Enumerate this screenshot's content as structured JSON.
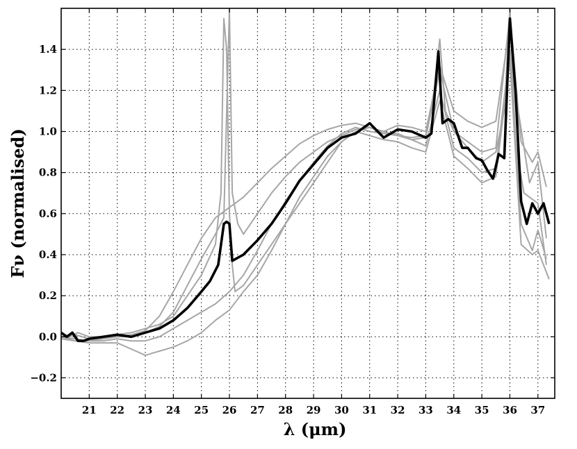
{
  "chart_data": {
    "type": "line",
    "title": "",
    "xlabel": "λ (μm)",
    "ylabel": "Fν (normalised)",
    "xlim": [
      20.0,
      37.6
    ],
    "ylim": [
      -0.3,
      1.6
    ],
    "grid": true,
    "grid_style": "dotted",
    "x_ticks": [
      21,
      22,
      23,
      24,
      25,
      26,
      27,
      28,
      29,
      30,
      31,
      32,
      33,
      34,
      35,
      36,
      37
    ],
    "y_ticks": [
      -0.2,
      0.0,
      0.2,
      0.4,
      0.6,
      0.8,
      1.0,
      1.2,
      1.4
    ],
    "y_tick_labels": [
      "−0.2",
      "0.0",
      "0.2",
      "0.4",
      "0.6",
      "0.8",
      "1.0",
      "1.2",
      "1.4"
    ],
    "colors": {
      "mean": "#000000",
      "individual": "#a6a6a6"
    },
    "series": [
      {
        "role": "individual",
        "x": [
          20.0,
          20.3,
          20.6,
          21.0,
          21.5,
          22.0,
          22.5,
          23.0,
          23.5,
          24.0,
          24.5,
          25.0,
          25.5,
          25.7,
          25.8,
          25.9,
          26.0,
          26.1,
          26.2,
          26.5,
          27.0,
          27.5,
          28.0,
          28.5,
          29.0,
          29.5,
          30.0,
          30.5,
          31.0,
          31.5,
          32.0,
          32.5,
          33.0,
          33.3,
          33.5,
          33.7,
          34.0,
          34.5,
          35.0,
          35.5,
          35.8,
          36.0,
          36.2,
          36.5,
          37.0,
          37.3
        ],
        "y": [
          0.02,
          0.0,
          0.02,
          0.0,
          0.0,
          0.01,
          0.02,
          0.04,
          0.06,
          0.1,
          0.2,
          0.3,
          0.45,
          0.7,
          1.55,
          1.4,
          0.6,
          0.35,
          0.22,
          0.25,
          0.35,
          0.45,
          0.55,
          0.65,
          0.75,
          0.85,
          0.95,
          1.0,
          1.02,
          1.0,
          0.98,
          0.97,
          0.98,
          1.2,
          1.45,
          1.1,
          1.0,
          0.92,
          0.85,
          0.9,
          1.1,
          1.6,
          0.95,
          0.7,
          0.65,
          0.35
        ]
      },
      {
        "role": "individual",
        "x": [
          20.0,
          20.5,
          21.0,
          21.5,
          22.0,
          22.5,
          23.0,
          23.5,
          24.0,
          24.5,
          25.0,
          25.5,
          25.8,
          26.0,
          26.1,
          26.3,
          26.5,
          27.0,
          27.5,
          28.0,
          28.5,
          29.0,
          29.5,
          30.0,
          30.5,
          31.0,
          31.5,
          32.0,
          32.5,
          33.0,
          33.5,
          34.0,
          34.5,
          35.0,
          35.5,
          36.0,
          36.3,
          36.7,
          37.0,
          37.3
        ],
        "y": [
          0.0,
          0.01,
          -0.01,
          0.0,
          0.0,
          0.0,
          0.02,
          0.05,
          0.12,
          0.25,
          0.38,
          0.5,
          0.58,
          1.6,
          0.7,
          0.55,
          0.5,
          0.6,
          0.7,
          0.78,
          0.85,
          0.9,
          0.95,
          0.98,
          1.01,
          1.02,
          0.99,
          0.98,
          0.96,
          0.97,
          1.3,
          1.0,
          0.95,
          0.9,
          0.92,
          1.58,
          1.1,
          0.75,
          0.85,
          0.48
        ]
      },
      {
        "role": "individual",
        "x": [
          20.0,
          20.5,
          21.0,
          21.5,
          22.0,
          22.5,
          23.0,
          23.5,
          24.0,
          24.5,
          25.0,
          25.5,
          26.0,
          26.5,
          27.0,
          27.5,
          28.0,
          28.5,
          29.0,
          29.5,
          30.0,
          30.5,
          31.0,
          31.5,
          32.0,
          32.5,
          33.0,
          33.5,
          34.0,
          34.5,
          35.0,
          35.5,
          36.0,
          36.4,
          36.8,
          37.0,
          37.3
        ],
        "y": [
          0.0,
          -0.01,
          -0.02,
          -0.01,
          0.0,
          0.01,
          0.03,
          0.1,
          0.22,
          0.35,
          0.48,
          0.58,
          0.63,
          0.68,
          0.75,
          0.82,
          0.88,
          0.94,
          0.98,
          1.01,
          1.03,
          1.04,
          1.02,
          1.0,
          1.03,
          1.02,
          1.0,
          1.32,
          1.1,
          1.05,
          1.02,
          1.05,
          1.52,
          0.95,
          0.85,
          0.9,
          0.73
        ]
      },
      {
        "role": "individual",
        "x": [
          20.0,
          20.5,
          21.0,
          21.5,
          22.0,
          22.5,
          23.0,
          23.5,
          24.0,
          24.5,
          25.0,
          25.5,
          26.0,
          26.5,
          27.0,
          27.5,
          28.0,
          28.5,
          29.0,
          29.5,
          30.0,
          30.5,
          31.0,
          31.5,
          32.0,
          32.5,
          33.0,
          33.5,
          34.0,
          34.5,
          35.0,
          35.5,
          36.0,
          36.4,
          36.8,
          37.0,
          37.3
        ],
        "y": [
          -0.01,
          -0.02,
          -0.02,
          -0.02,
          -0.01,
          -0.02,
          -0.02,
          0.0,
          0.04,
          0.08,
          0.12,
          0.16,
          0.22,
          0.3,
          0.42,
          0.55,
          0.66,
          0.76,
          0.85,
          0.93,
          0.99,
          1.02,
          1.0,
          0.99,
          0.99,
          0.96,
          0.93,
          1.2,
          0.92,
          0.87,
          0.8,
          0.82,
          1.4,
          0.55,
          0.42,
          0.52,
          0.38
        ]
      },
      {
        "role": "individual",
        "x": [
          20.0,
          20.5,
          21.0,
          21.5,
          22.0,
          22.5,
          23.0,
          23.5,
          24.0,
          24.5,
          25.0,
          25.5,
          26.0,
          26.5,
          27.0,
          27.5,
          28.0,
          28.5,
          29.0,
          29.5,
          30.0,
          30.5,
          31.0,
          31.5,
          32.0,
          32.5,
          33.0,
          33.5,
          34.0,
          34.5,
          35.0,
          35.5,
          36.0,
          36.4,
          36.8,
          37.0,
          37.4
        ],
        "y": [
          0.0,
          -0.02,
          -0.03,
          -0.03,
          -0.03,
          -0.06,
          -0.09,
          -0.07,
          -0.05,
          -0.02,
          0.02,
          0.08,
          0.13,
          0.22,
          0.3,
          0.42,
          0.55,
          0.68,
          0.78,
          0.88,
          0.95,
          1.0,
          0.98,
          0.96,
          0.95,
          0.92,
          0.9,
          1.15,
          0.88,
          0.82,
          0.75,
          0.78,
          1.35,
          0.45,
          0.4,
          0.42,
          0.28
        ]
      },
      {
        "role": "mean",
        "x": [
          20.0,
          20.2,
          20.4,
          20.6,
          20.8,
          21.0,
          21.5,
          22.0,
          22.5,
          23.0,
          23.5,
          24.0,
          24.5,
          25.0,
          25.3,
          25.6,
          25.8,
          25.9,
          26.0,
          26.1,
          26.5,
          27.0,
          27.5,
          28.0,
          28.5,
          29.0,
          29.5,
          30.0,
          30.5,
          31.0,
          31.5,
          32.0,
          32.5,
          33.0,
          33.2,
          33.45,
          33.6,
          33.8,
          34.0,
          34.3,
          34.5,
          34.8,
          35.0,
          35.2,
          35.4,
          35.6,
          35.8,
          36.0,
          36.2,
          36.4,
          36.6,
          36.8,
          37.0,
          37.2,
          37.4
        ],
        "y": [
          0.02,
          0.0,
          0.02,
          -0.02,
          -0.02,
          -0.01,
          0.0,
          0.01,
          0.0,
          0.02,
          0.04,
          0.08,
          0.14,
          0.22,
          0.27,
          0.35,
          0.55,
          0.56,
          0.55,
          0.37,
          0.4,
          0.47,
          0.55,
          0.65,
          0.76,
          0.84,
          0.92,
          0.97,
          0.99,
          1.04,
          0.97,
          1.01,
          1.0,
          0.97,
          0.99,
          1.39,
          1.04,
          1.06,
          1.04,
          0.92,
          0.92,
          0.87,
          0.86,
          0.81,
          0.77,
          0.89,
          0.87,
          1.55,
          1.2,
          0.66,
          0.55,
          0.65,
          0.6,
          0.65,
          0.55
        ]
      }
    ]
  }
}
